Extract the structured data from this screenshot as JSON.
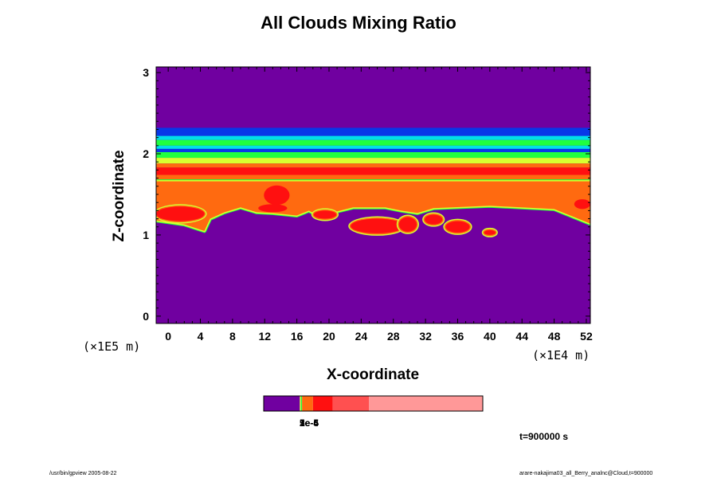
{
  "chart_data": {
    "type": "contour",
    "title": "All Clouds Mixing Ratio",
    "xlabel": "X-coordinate",
    "ylabel": "Z-coordinate",
    "x_scale": "(×1E4 m)",
    "y_scale": "(×1E5 m)",
    "xlim": [
      -1.5,
      52.5
    ],
    "ylim": [
      -0.09,
      3.07
    ],
    "x_ticks": [
      "0",
      "4",
      "8",
      "12",
      "16",
      "20",
      "24",
      "28",
      "32",
      "36",
      "40",
      "44",
      "48",
      "52"
    ],
    "y_ticks": [
      "0",
      "1",
      "2",
      "3"
    ],
    "colors": {
      "background": "#7000a0",
      "blue": "#0838e8",
      "cyan": "#00e0e8",
      "green": "#20ff40",
      "yellow": "#d8ff30",
      "orange": "#ff6a10",
      "red": "#ff1010",
      "light_red": "#ff5050",
      "pink": "#ff9898"
    },
    "bands": [
      {
        "z_bottom": 2.22,
        "z_top": 2.32,
        "color": "#0838e8"
      },
      {
        "z_bottom": 2.17,
        "z_top": 2.22,
        "color": "#00e0e8"
      },
      {
        "z_bottom": 2.1,
        "z_top": 2.17,
        "color": "#20ff40"
      },
      {
        "z_bottom": 2.06,
        "z_top": 2.1,
        "color": "#00e0e8"
      },
      {
        "z_bottom": 2.02,
        "z_top": 2.06,
        "color": "#0838e8"
      },
      {
        "z_bottom": 1.95,
        "z_top": 2.02,
        "color": "#20ff40"
      },
      {
        "z_bottom": 1.88,
        "z_top": 1.95,
        "color": "#d8ff30"
      },
      {
        "z_bottom": 1.83,
        "z_top": 1.88,
        "color": "#ff6a10"
      },
      {
        "z_bottom": 1.74,
        "z_top": 1.83,
        "color": "#ff1010"
      },
      {
        "z_bottom": 1.66,
        "z_top": 1.74,
        "color": "#ff6a10"
      },
      {
        "z_bottom": 1.18,
        "z_top": 1.66,
        "color": "#ff6a10"
      }
    ],
    "lower_cloud_base": [
      [
        -1.5,
        1.18
      ],
      [
        2,
        1.13
      ],
      [
        4.5,
        1.05
      ],
      [
        5.2,
        1.2
      ],
      [
        7,
        1.28
      ],
      [
        9,
        1.34
      ],
      [
        11,
        1.28
      ],
      [
        13,
        1.27
      ],
      [
        16,
        1.24
      ],
      [
        17.5,
        1.3
      ],
      [
        19,
        1.22
      ],
      [
        21,
        1.29
      ],
      [
        23,
        1.34
      ],
      [
        27,
        1.34
      ],
      [
        29,
        1.3
      ],
      [
        31,
        1.27
      ],
      [
        33,
        1.33
      ],
      [
        40,
        1.36
      ],
      [
        48,
        1.32
      ],
      [
        50.5,
        1.22
      ],
      [
        52.5,
        1.14
      ]
    ],
    "cells": [
      {
        "x": 1.5,
        "z": 1.26,
        "rx": 3.0,
        "rz": 0.09,
        "color": "#ff1010"
      },
      {
        "x": 13.5,
        "z": 1.49,
        "rx": 1.6,
        "rz": 0.12,
        "color": "#ff1010"
      },
      {
        "x": 13.0,
        "z": 1.33,
        "rx": 1.8,
        "rz": 0.05,
        "color": "#ff1010"
      },
      {
        "x": 19.5,
        "z": 1.25,
        "rx": 1.4,
        "rz": 0.05,
        "color": "#ff1010"
      },
      {
        "x": 26.0,
        "z": 1.11,
        "rx": 3.3,
        "rz": 0.09,
        "color": "#ff1010"
      },
      {
        "x": 29.8,
        "z": 1.13,
        "rx": 1.1,
        "rz": 0.09,
        "color": "#ff1010"
      },
      {
        "x": 33.0,
        "z": 1.19,
        "rx": 1.1,
        "rz": 0.06,
        "color": "#ff1010"
      },
      {
        "x": 36.0,
        "z": 1.1,
        "rx": 1.5,
        "rz": 0.07,
        "color": "#ff1010"
      },
      {
        "x": 40.0,
        "z": 1.03,
        "rx": 0.7,
        "rz": 0.03,
        "color": "#ff1010"
      },
      {
        "x": 51.5,
        "z": 1.38,
        "rx": 1.0,
        "rz": 0.06,
        "color": "#ff1010"
      }
    ],
    "colorbar": {
      "segments": [
        {
          "color": "#7000a0",
          "fraction": 0.165
        },
        {
          "color": "#d8ff30",
          "fraction": 0.005
        },
        {
          "color": "#20ff40",
          "fraction": 0.005
        },
        {
          "color": "#ff6a10",
          "fraction": 0.05
        },
        {
          "color": "#ff1010",
          "fraction": 0.09
        },
        {
          "color": "#ff5050",
          "fraction": 0.165
        },
        {
          "color": "#ff9898",
          "fraction": 0.52
        }
      ],
      "labels": [
        "1e-6",
        "5e-5",
        "2e-4"
      ]
    }
  },
  "time_label": "t=900000 s",
  "footer_left": "/usr/bin/gpview 2005-08-22",
  "footer_right": "arare-nakajima03_all_Berry_analnc@Cloud,t=900000"
}
